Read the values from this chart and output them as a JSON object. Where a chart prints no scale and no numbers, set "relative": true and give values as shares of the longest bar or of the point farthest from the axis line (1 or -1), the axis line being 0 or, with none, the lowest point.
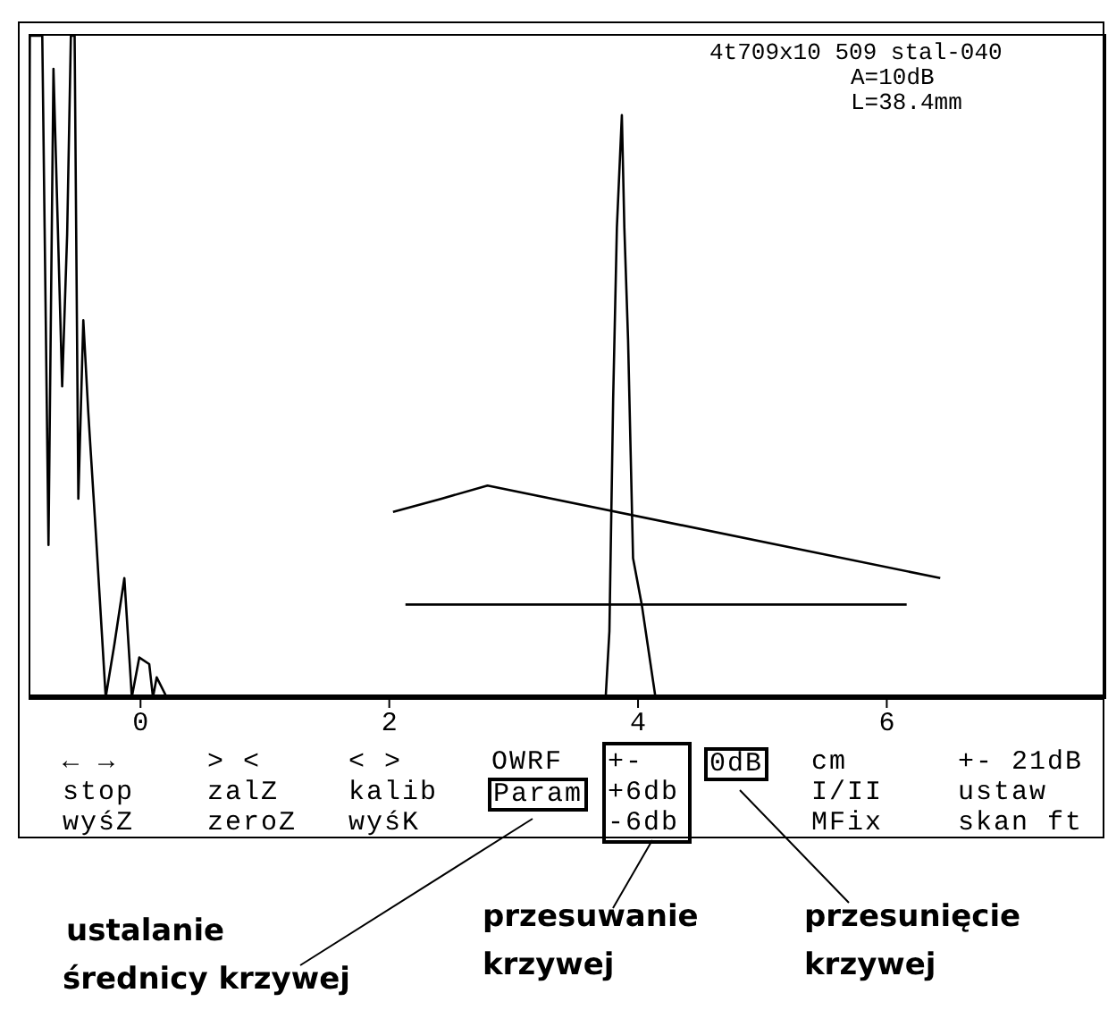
{
  "chart_data": {
    "type": "line",
    "relative": true,
    "xlim": [
      -0.9,
      7.75
    ],
    "xticks": [
      0,
      2,
      4,
      6
    ],
    "series": [
      {
        "color": "#000000",
        "x": [
          -0.9,
          -0.9,
          -0.89,
          -0.79,
          -0.74,
          -0.7,
          -0.63,
          -0.59,
          -0.56,
          -0.53,
          -0.5,
          -0.46,
          -0.42,
          -0.36,
          -0.28,
          -0.21,
          -0.13,
          -0.07,
          -0.01,
          0.07,
          0.1,
          0.13,
          0.21,
          3.74,
          3.77,
          3.8,
          3.83,
          3.87,
          3.89,
          3.92,
          3.96,
          4.03,
          4.14,
          7.7
        ],
        "values": [
          0,
          0.5,
          1,
          1,
          0.23,
          0.95,
          0.47,
          0.7,
          1,
          1,
          0.3,
          0.57,
          0.43,
          0.25,
          0,
          0.08,
          0.18,
          0,
          0.06,
          0.05,
          0,
          0.03,
          0,
          0,
          0.1,
          0.45,
          0.71,
          0.88,
          0.71,
          0.54,
          0.21,
          0.14,
          0,
          0
        ]
      },
      {
        "color": "#000000",
        "x": [
          2.03,
          2.42,
          2.79,
          6.43
        ],
        "values": [
          0.28,
          0.3,
          0.32,
          0.18
        ]
      },
      {
        "color": "#000000",
        "x": [
          2.13,
          6.16
        ],
        "values": [
          0.14,
          0.14
        ]
      }
    ],
    "annotations": [
      "4t709x10 509 stal-040",
      "A=10dB",
      "L=38.4mm",
      "← →",
      "stop",
      "wyśZ",
      "> <",
      "zalZ",
      "zeroZ",
      "< >",
      "kalib",
      "wyśK",
      "OWRF",
      "Param",
      "+-",
      "+6db",
      "-6db",
      "0dB",
      "cm",
      "I/II",
      "MFix",
      "+-  21dB",
      "ustaw",
      "skan ft",
      "ustalanie",
      "średnicy krzywej",
      "przesuwanie",
      "krzywej",
      "przesunięcie",
      "krzywej"
    ]
  }
}
